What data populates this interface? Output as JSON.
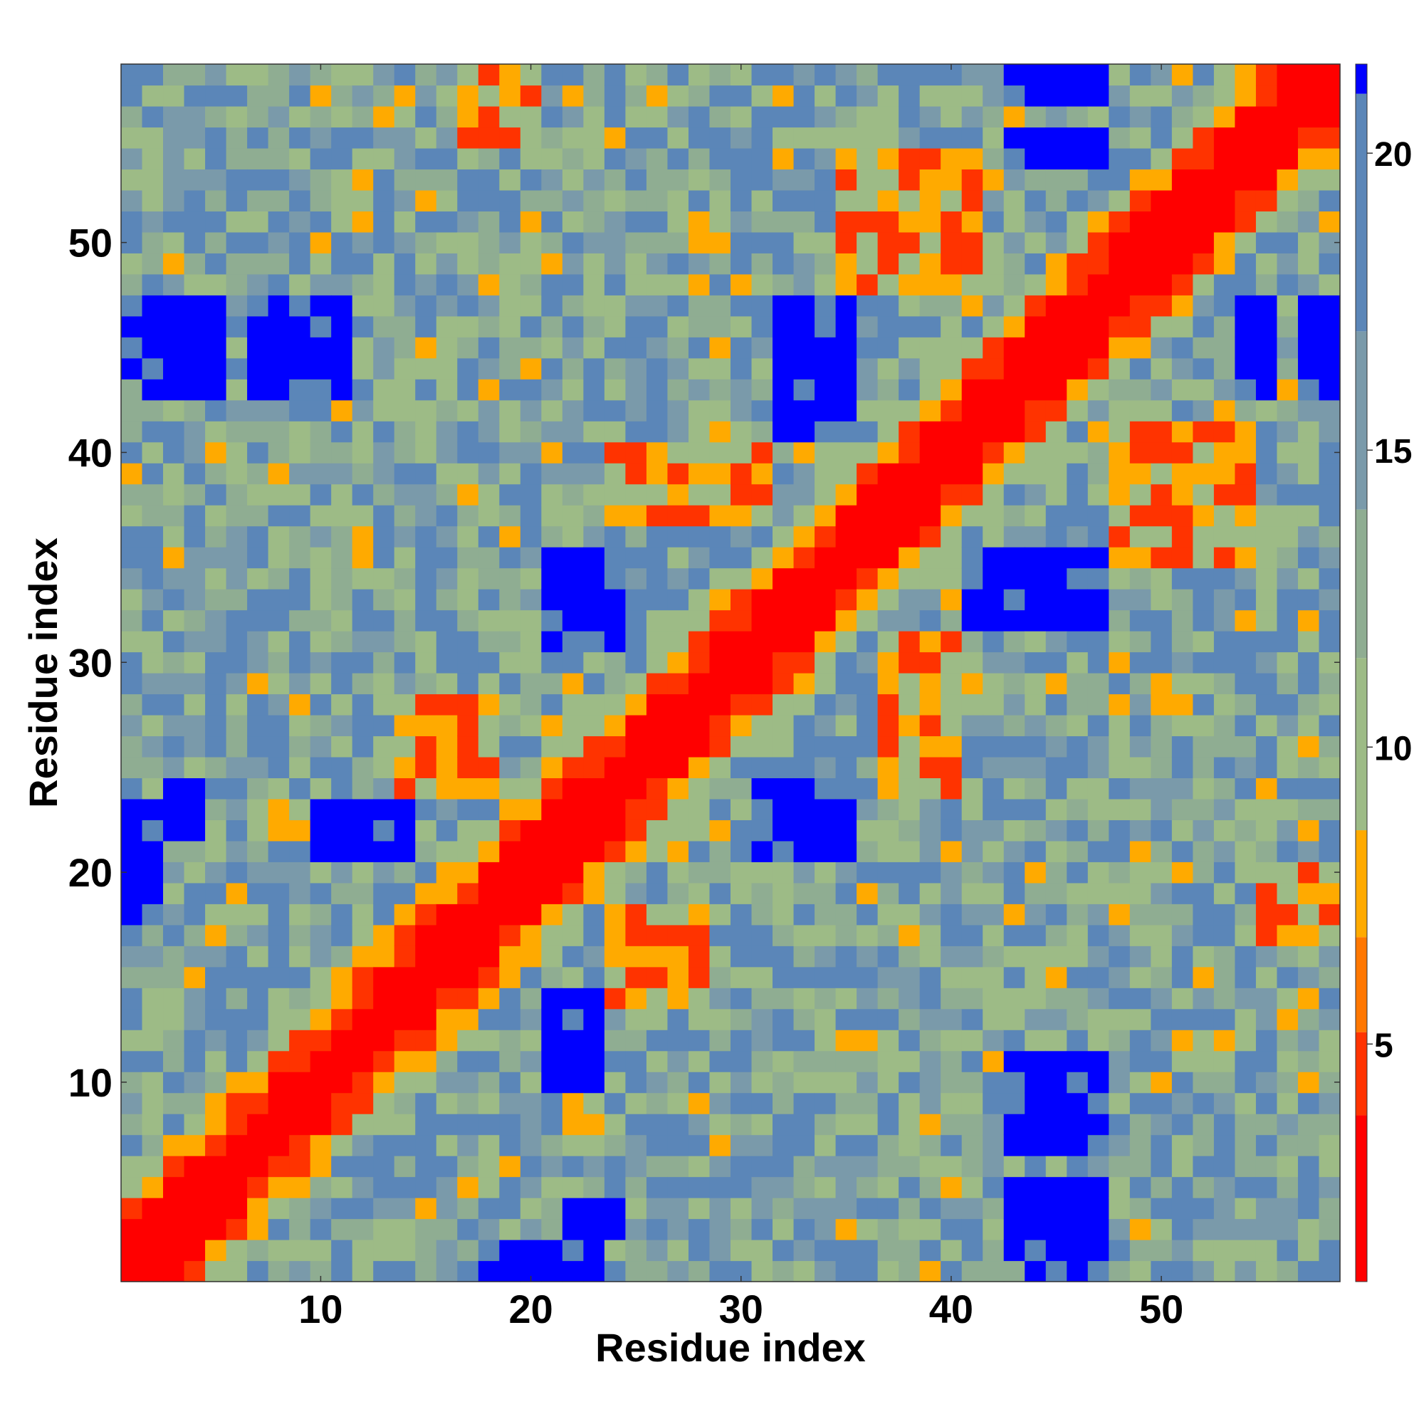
{
  "chart_data": {
    "type": "heatmap",
    "title": "",
    "xlabel": "Residue index",
    "ylabel": "Residue index",
    "x_range": [
      1,
      58
    ],
    "y_range": [
      1,
      58
    ],
    "x_ticks": [
      10,
      20,
      30,
      40,
      50
    ],
    "y_ticks": [
      10,
      20,
      30,
      40,
      50
    ],
    "grid": false,
    "legend": "colorbar right",
    "colorbar": {
      "range": [
        1,
        21.5
      ],
      "ticks": [
        5,
        10,
        15,
        20
      ],
      "colors": [
        {
          "from": 1.0,
          "to": 3.8,
          "color": "#ff0000"
        },
        {
          "from": 3.8,
          "to": 5.2,
          "color": "#ff3300"
        },
        {
          "from": 5.2,
          "to": 6.8,
          "color": "#ff7700"
        },
        {
          "from": 6.8,
          "to": 8.6,
          "color": "#ffaa00"
        },
        {
          "from": 8.6,
          "to": 11.5,
          "color": "#9dbb86"
        },
        {
          "from": 11.5,
          "to": 14.0,
          "color": "#8fad92"
        },
        {
          "from": 14.0,
          "to": 17.0,
          "color": "#7a9aaa"
        },
        {
          "from": 17.0,
          "to": 21.0,
          "color": "#5b86b8"
        },
        {
          "from": 21.0,
          "to": 21.5,
          "color": "#0000ff"
        }
      ]
    },
    "description_values": "Symmetric residue-residue distance map: values near 1-4 along the main diagonal, 5-8 for near-diagonal and contact bands, 9-20 for most off-diagonal cells, and above 21 for far blocks.",
    "blue_blocks": [
      {
        "x": [
          2,
          5
        ],
        "y": [
          43,
          47
        ]
      },
      {
        "x": [
          7,
          8
        ],
        "y": [
          43,
          47
        ]
      },
      {
        "x": [
          11,
          11
        ],
        "y": [
          43,
          47
        ]
      },
      {
        "x": [
          32,
          35
        ],
        "y": [
          41,
          47
        ]
      },
      {
        "x": [
          42,
          46
        ],
        "y": [
          32,
          35
        ]
      },
      {
        "x": [
          43,
          47
        ],
        "y": [
          54,
          55
        ]
      },
      {
        "x": [
          43,
          47
        ],
        "y": [
          57,
          58
        ]
      },
      {
        "x": [
          54,
          55
        ],
        "y": [
          43,
          47
        ]
      },
      {
        "x": [
          57,
          58
        ],
        "y": [
          43,
          47
        ]
      },
      {
        "x": [
          1,
          1
        ],
        "y": [
          18,
          24
        ]
      },
      {
        "x": [
          11,
          14
        ],
        "y": [
          21,
          23
        ]
      },
      {
        "x": [
          21,
          24
        ],
        "y": [
          31,
          35
        ]
      },
      {
        "x": [
          31,
          35
        ],
        "y": [
          21,
          24
        ]
      },
      {
        "x": [
          21,
          23
        ],
        "y": [
          10,
          13
        ]
      },
      {
        "x": [
          44,
          47
        ],
        "y": [
          1,
          5
        ]
      },
      {
        "x": [
          44,
          47
        ],
        "y": [
          7,
          10
        ]
      },
      {
        "x": [
          18,
          23
        ],
        "y": [
          1,
          2
        ]
      },
      {
        "x": [
          22,
          24
        ],
        "y": [
          3,
          4
        ]
      }
    ],
    "orange_contacts": [
      {
        "x": [
          37,
          40
        ],
        "y": [
          24,
          31
        ]
      },
      {
        "x": [
          24,
          31
        ],
        "y": [
          37,
          40
        ]
      },
      {
        "x": [
          14,
          18
        ],
        "y": [
          24,
          28
        ]
      },
      {
        "x": [
          24,
          28
        ],
        "y": [
          14,
          18
        ]
      },
      {
        "x": [
          35,
          41
        ],
        "y": [
          48,
          54
        ]
      },
      {
        "x": [
          48,
          54
        ],
        "y": [
          35,
          41
        ]
      },
      {
        "x": [
          17,
          20
        ],
        "y": [
          55,
          58
        ]
      },
      {
        "x": [
          55,
          58
        ],
        "y": [
          17,
          20
        ]
      }
    ]
  }
}
